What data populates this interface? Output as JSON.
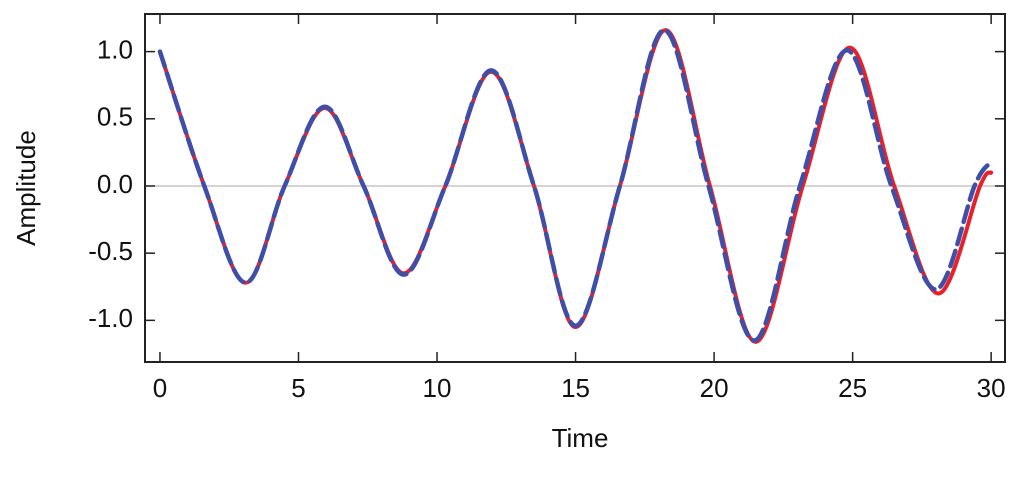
{
  "chart_data": {
    "type": "line",
    "x_label": "Time",
    "y_label": "Amplitude",
    "xlim": [
      -0.54,
      30.5
    ],
    "ylim": [
      -1.31,
      1.28
    ],
    "xticks": [
      0,
      5,
      10,
      15,
      20,
      25,
      30
    ],
    "yticks": [
      {
        "value": 1.0,
        "label": "1.0"
      },
      {
        "value": 0.5,
        "label": "0.5"
      },
      {
        "value": 0.0,
        "label": "0.0"
      },
      {
        "value": -0.5,
        "label": "-0.5"
      },
      {
        "value": -1.0,
        "label": "-1.0"
      }
    ],
    "zero_line": true,
    "series": [
      {
        "color": "#e8202a",
        "dashed": false,
        "x": [
          0,
          1.6,
          3.1,
          4.5,
          5.95,
          7.35,
          8.8,
          10.3,
          11.95,
          13.5,
          15.0,
          16.6,
          18.25,
          19.85,
          21.5,
          23.2,
          24.9,
          26.5,
          28.1,
          29.6,
          30.0
        ],
        "values": [
          1.0,
          0.0,
          -0.72,
          0.0,
          0.58,
          0.0,
          -0.65,
          0.0,
          0.85,
          0.0,
          -1.05,
          0.0,
          1.16,
          0.0,
          -1.16,
          0.0,
          1.03,
          0.0,
          -0.8,
          0.0,
          0.1
        ]
      },
      {
        "color": "#3f4fa8",
        "dashed": true,
        "x": [
          0,
          1.6,
          3.1,
          4.5,
          5.95,
          7.35,
          8.8,
          10.3,
          11.95,
          13.5,
          15.0,
          16.6,
          18.2,
          19.8,
          21.45,
          23.1,
          24.8,
          26.4,
          28.0,
          29.4,
          29.95
        ],
        "values": [
          1.0,
          0.0,
          -0.72,
          0.0,
          0.59,
          0.0,
          -0.66,
          0.0,
          0.86,
          0.0,
          -1.04,
          0.0,
          1.16,
          0.0,
          -1.15,
          0.0,
          1.01,
          0.0,
          -0.77,
          0.0,
          0.17
        ]
      }
    ]
  }
}
